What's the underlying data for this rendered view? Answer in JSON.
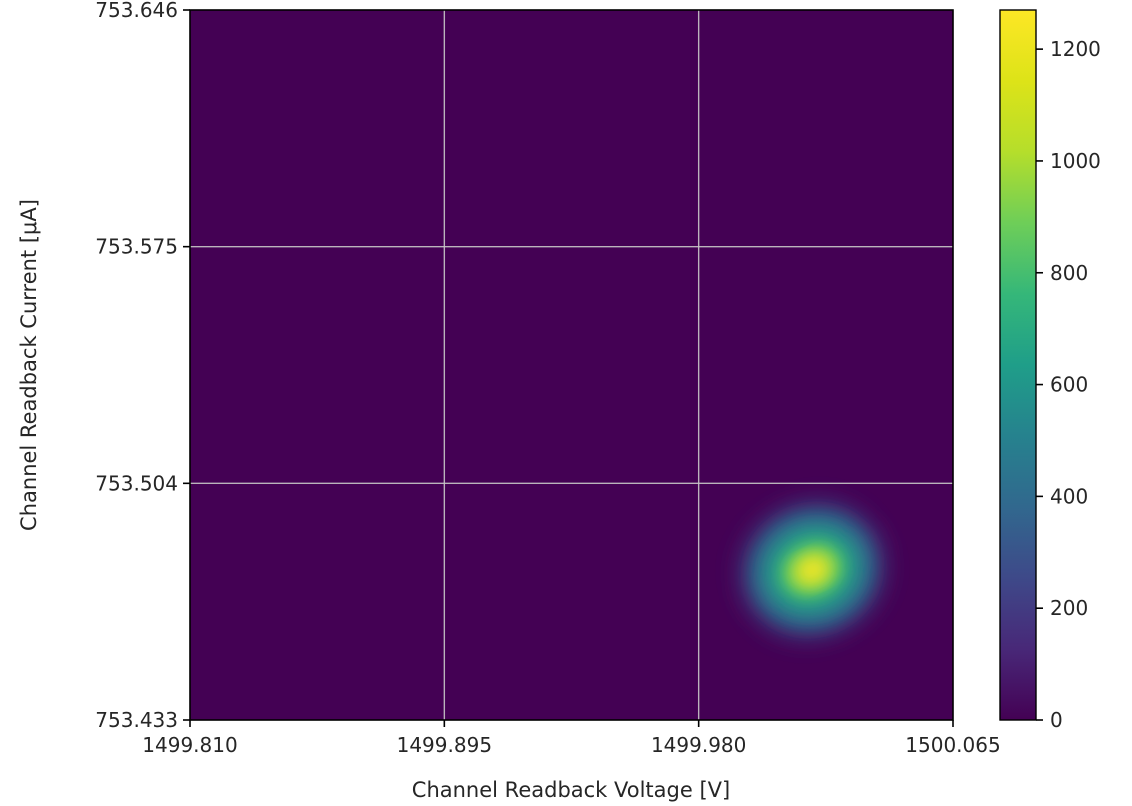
{
  "chart_data": {
    "type": "heatmap",
    "title": "",
    "xlabel": "Channel Readback Voltage [V]",
    "ylabel": "Channel Readback Current [μA]",
    "xlim": [
      1499.81,
      1500.065
    ],
    "ylim": [
      753.433,
      753.646
    ],
    "x_ticks": [
      "1499.810",
      "1499.895",
      "1499.980",
      "1500.065"
    ],
    "y_ticks": [
      "753.433",
      "753.504",
      "753.575",
      "753.646"
    ],
    "grid": true,
    "colormap": "viridis",
    "background_color": "#440154",
    "colorbar": {
      "range": [
        0,
        1270
      ],
      "ticks": [
        "0",
        "200",
        "400",
        "600",
        "800",
        "1000",
        "1200"
      ]
    },
    "peaks": [
      {
        "x": 1500.018,
        "y": 753.478,
        "value": 1270
      }
    ]
  }
}
